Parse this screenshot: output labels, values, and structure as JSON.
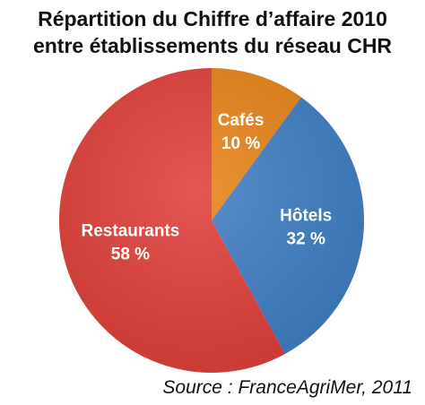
{
  "chart_data": {
    "type": "pie",
    "title_lines": [
      "Répartition du Chiffre d’affaire 2010",
      "entre établissements du réseau CHR"
    ],
    "slices": [
      {
        "label": "Cafés",
        "value": 10,
        "value_label": "10 %",
        "color": "#e8841a"
      },
      {
        "label": "Hôtels",
        "value": 32,
        "value_label": "32 %",
        "color": "#3f7fc4"
      },
      {
        "label": "Restaurants",
        "value": 58,
        "value_label": "58 %",
        "color": "#e0403a"
      }
    ],
    "source": "Source : FranceAgriMer, 2011"
  }
}
